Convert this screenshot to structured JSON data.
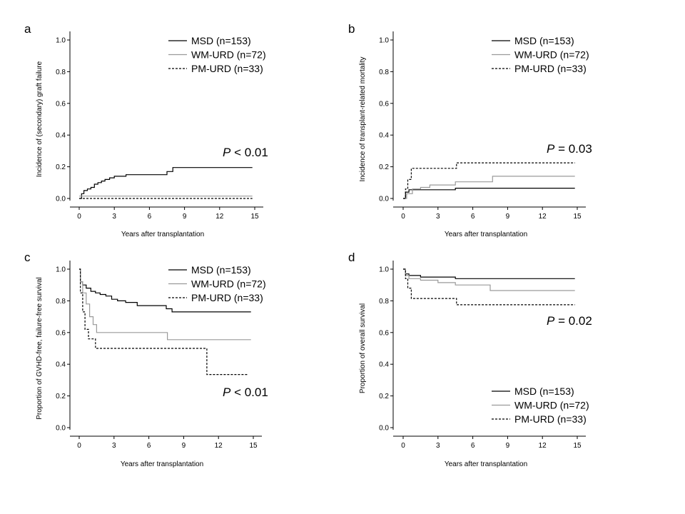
{
  "chart_data": [
    {
      "type": "line",
      "panel": "a",
      "xlabel": "Years after transplantation",
      "ylabel": "Incidence of (secondary) graft failure",
      "xlim": [
        0,
        15
      ],
      "ylim": [
        0,
        1
      ],
      "xticks": [
        0,
        3,
        6,
        9,
        12,
        15
      ],
      "yticks": [
        0.0,
        0.2,
        0.4,
        0.6,
        0.8,
        1.0
      ],
      "ytick_labels": [
        "0.0",
        "0.2",
        "0.4",
        "0.6",
        "0.8",
        "1.0"
      ],
      "legend_position": "top-right",
      "pvalue": {
        "prefix": "P",
        "rest": " < 0.01",
        "position": "mid-right"
      },
      "series": [
        {
          "name": "MSD (n=153)",
          "style": "solid-black",
          "x": [
            0,
            0.2,
            0.4,
            0.7,
            1.0,
            1.3,
            1.6,
            1.9,
            2.2,
            2.6,
            3.0,
            4.0,
            7.5,
            8.0,
            14.8
          ],
          "y": [
            0,
            0.03,
            0.05,
            0.06,
            0.07,
            0.09,
            0.1,
            0.11,
            0.12,
            0.13,
            0.14,
            0.15,
            0.17,
            0.195,
            0.195
          ]
        },
        {
          "name": "WM-URD (n=72)",
          "style": "solid-gray",
          "x": [
            0,
            14.8
          ],
          "y": [
            0.015,
            0.015
          ]
        },
        {
          "name": "PM-URD (n=33)",
          "style": "dashed-black",
          "x": [
            0,
            14.8
          ],
          "y": [
            0.0,
            0.0
          ]
        }
      ]
    },
    {
      "type": "line",
      "panel": "b",
      "xlabel": "Years after transplantation",
      "ylabel": "Incidence of transplant-related mortality",
      "xlim": [
        0,
        15
      ],
      "ylim": [
        0,
        1
      ],
      "xticks": [
        0,
        3,
        6,
        9,
        12,
        15
      ],
      "yticks": [
        0.0,
        0.2,
        0.4,
        0.6,
        0.8,
        1.0
      ],
      "ytick_labels": [
        "0.0",
        "0.2",
        "0.4",
        "0.6",
        "0.8",
        "1.0"
      ],
      "legend_position": "top-right",
      "pvalue": {
        "prefix": "P",
        "rest": " = 0.03",
        "position": "mid-right"
      },
      "series": [
        {
          "name": "MSD (n=153)",
          "style": "solid-black",
          "x": [
            0,
            0.2,
            0.5,
            4.5,
            14.8
          ],
          "y": [
            0,
            0.04,
            0.055,
            0.065,
            0.065
          ]
        },
        {
          "name": "WM-URD (n=72)",
          "style": "solid-gray",
          "x": [
            0,
            0.3,
            0.8,
            1.5,
            2.3,
            4.5,
            7.7,
            14.8
          ],
          "y": [
            0,
            0.03,
            0.06,
            0.07,
            0.085,
            0.105,
            0.14,
            0.14
          ]
        },
        {
          "name": "PM-URD (n=33)",
          "style": "dashed-black",
          "x": [
            0,
            0.2,
            0.4,
            0.7,
            4.6,
            14.8
          ],
          "y": [
            0,
            0.06,
            0.12,
            0.19,
            0.225,
            0.225
          ]
        }
      ]
    },
    {
      "type": "line",
      "panel": "c",
      "xlabel": "Years after transplantation",
      "ylabel": "Proportion of GVHD-free, failure-free survival",
      "xlim": [
        0,
        15
      ],
      "ylim": [
        0,
        1
      ],
      "xticks": [
        0,
        3,
        6,
        9,
        12,
        15
      ],
      "yticks": [
        0.0,
        0.2,
        0.4,
        0.6,
        0.8,
        1.0
      ],
      "ytick_labels": [
        "0.0",
        "0.2",
        "0.4",
        "0.6",
        "0.8",
        "1.0"
      ],
      "legend_position": "top-right",
      "pvalue": {
        "prefix": "P",
        "rest": " < 0.01",
        "position": "bottom-right"
      },
      "series": [
        {
          "name": "MSD (n=153)",
          "style": "solid-black",
          "x": [
            0,
            0.1,
            0.3,
            0.6,
            1.0,
            1.4,
            1.8,
            2.3,
            2.8,
            3.3,
            4.0,
            5.0,
            7.5,
            8.0,
            14.8
          ],
          "y": [
            1.0,
            0.92,
            0.9,
            0.88,
            0.86,
            0.85,
            0.84,
            0.83,
            0.81,
            0.8,
            0.79,
            0.77,
            0.75,
            0.73,
            0.73
          ]
        },
        {
          "name": "WM-URD (n=72)",
          "style": "solid-gray",
          "x": [
            0,
            0.1,
            0.3,
            0.6,
            0.9,
            1.2,
            1.5,
            7.6,
            14.8
          ],
          "y": [
            1.0,
            0.92,
            0.85,
            0.78,
            0.7,
            0.65,
            0.6,
            0.555,
            0.555
          ]
        },
        {
          "name": "PM-URD (n=33)",
          "style": "dashed-black",
          "x": [
            0,
            0.1,
            0.3,
            0.5,
            0.8,
            1.4,
            11.0,
            14.5
          ],
          "y": [
            1.0,
            0.85,
            0.73,
            0.62,
            0.56,
            0.5,
            0.335,
            0.335
          ]
        }
      ]
    },
    {
      "type": "line",
      "panel": "d",
      "xlabel": "Years after transplantation",
      "ylabel": "Proportion of overall survival",
      "xlim": [
        0,
        15
      ],
      "ylim": [
        0,
        1
      ],
      "xticks": [
        0,
        3,
        6,
        9,
        12,
        15
      ],
      "yticks": [
        0.0,
        0.2,
        0.4,
        0.6,
        0.8,
        1.0
      ],
      "ytick_labels": [
        "0.0",
        "0.2",
        "0.4",
        "0.6",
        "0.8",
        "1.0"
      ],
      "legend_position": "bottom-right",
      "pvalue": {
        "prefix": "P",
        "rest": " = 0.02",
        "position": "mid-right"
      },
      "series": [
        {
          "name": "MSD (n=153)",
          "style": "solid-black",
          "x": [
            0,
            0.2,
            0.5,
            1.5,
            4.5,
            14.8
          ],
          "y": [
            1.0,
            0.97,
            0.96,
            0.95,
            0.94,
            0.94
          ]
        },
        {
          "name": "WM-URD (n=72)",
          "style": "solid-gray",
          "x": [
            0,
            0.2,
            0.5,
            1.5,
            3.0,
            4.5,
            7.5,
            14.8
          ],
          "y": [
            1.0,
            0.96,
            0.94,
            0.93,
            0.915,
            0.9,
            0.865,
            0.865
          ]
        },
        {
          "name": "PM-URD (n=33)",
          "style": "dashed-black",
          "x": [
            0,
            0.2,
            0.4,
            0.7,
            4.6,
            14.8
          ],
          "y": [
            1.0,
            0.94,
            0.88,
            0.815,
            0.775,
            0.775
          ]
        }
      ]
    }
  ]
}
